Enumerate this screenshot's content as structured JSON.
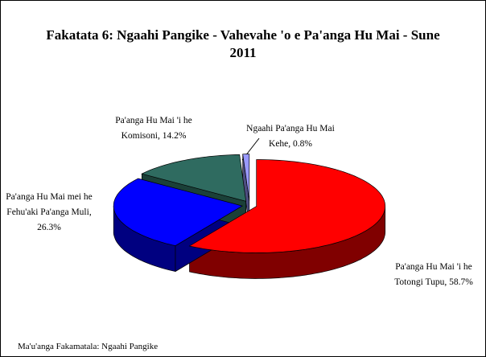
{
  "chart_data": {
    "type": "pie3d",
    "title": "Fakatata 6: Ngaahi Pangike - Vahevahe 'o e Pa'anga Hu Mai - Sune 2011",
    "values": [
      58.7,
      26.3,
      14.2,
      0.8
    ],
    "value_labels": [
      "Pa'anga Hu Mai 'i he Totongi Tupu, 58.7%",
      "Pa'anga Hu Mai mei he Fehu'aki Pa'anga Muli, 26.3%",
      "Pa'anga Hu Mai 'i he Komisoni, 14.2%",
      "Ngaahi Pa'anga Hu Mai Kehe, 0.8%"
    ],
    "colors": [
      "#ff0000",
      "#0000ff",
      "#2f6b60",
      "#9999ff"
    ],
    "side_colors": [
      "#800000",
      "#000080",
      "#1b4038",
      "#4d4d80"
    ],
    "source": "Ma'u'anga Fakamatala: Ngaahi Pangike"
  }
}
